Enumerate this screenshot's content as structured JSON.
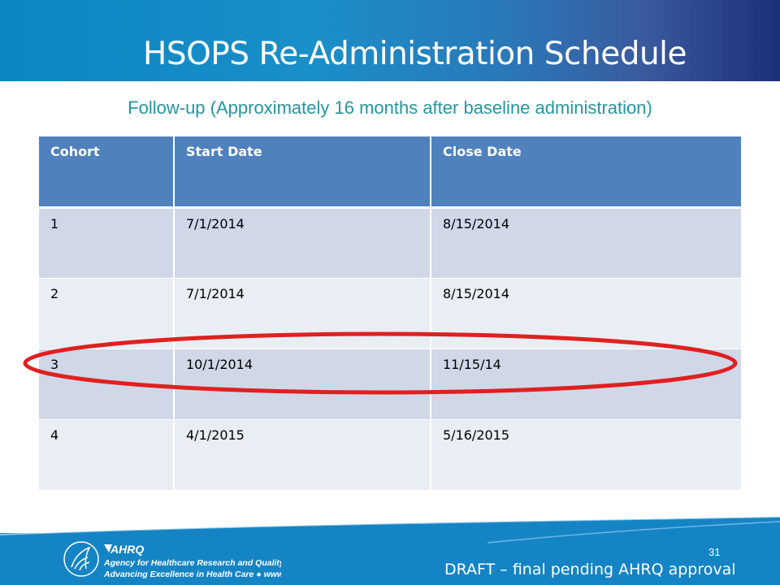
{
  "slide": {
    "title": "HSOPS Re-Administration Schedule",
    "subtitle": "Follow-up (Approximately 16 months after baseline administration)",
    "page_number": "31",
    "draft_notice": "DRAFT – final pending AHRQ approval",
    "colors": {
      "header_band": "#1a8fc8",
      "table_header": "#4f81bd",
      "row_odd": "#d0d8e8",
      "row_even": "#e9edf4",
      "subtitle": "#2496a0",
      "highlight": "#e02020"
    }
  },
  "table": {
    "headers": [
      "Cohort",
      "Start Date",
      "Close Date"
    ],
    "rows": [
      [
        "1",
        "7/1/2014",
        "8/15/2014"
      ],
      [
        "2",
        "7/1/2014",
        "8/15/2014"
      ],
      [
        "3",
        "10/1/2014",
        "11/15/14"
      ],
      [
        "4",
        "4/1/2015",
        "5/16/2015"
      ]
    ],
    "highlighted_row": "3"
  },
  "logo": {
    "brand": "AHRQ",
    "line1": "Agency for Healthcare Research and Quality",
    "line2": "Advancing Excellence in Health Care ● www.ahrq.gov",
    "icons": [
      "hhs-eagle-seal-icon",
      "ahrq-logo-icon"
    ]
  }
}
